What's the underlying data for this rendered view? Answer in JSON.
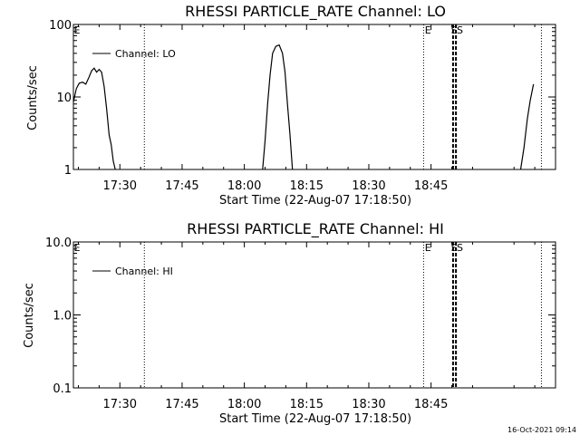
{
  "footer": {
    "timestamp": "16-Oct-2021 09:14"
  },
  "chart_data": [
    {
      "type": "line",
      "title": "RHESSI PARTICLE_RATE Channel: LO",
      "xlabel": "Start Time (22-Aug-07 17:18:50)",
      "ylabel": "Counts/sec",
      "y_scale": "log",
      "ylim": [
        1,
        100
      ],
      "yticks": [
        1,
        10,
        100
      ],
      "ytick_labels": [
        "1",
        "10",
        "100"
      ],
      "xlim_minutes": [
        1038.8,
        1155.0
      ],
      "xticks_minutes": [
        1050,
        1065,
        1080,
        1095,
        1110,
        1125
      ],
      "xtick_labels": [
        "17:30",
        "17:45",
        "18:00",
        "18:15",
        "18:30",
        "18:45"
      ],
      "legend": {
        "label": "Channel: LO",
        "placement": "top-left"
      },
      "series": [
        {
          "name": "Channel: LO",
          "points_min_value": [
            [
              1038.8,
              8.5
            ],
            [
              1039.5,
              13
            ],
            [
              1040.2,
              15.5
            ],
            [
              1041,
              16
            ],
            [
              1041.8,
              15
            ],
            [
              1042.6,
              19
            ],
            [
              1043.2,
              23
            ],
            [
              1043.8,
              25
            ],
            [
              1044.4,
              22
            ],
            [
              1045,
              24
            ],
            [
              1045.6,
              22
            ],
            [
              1046.2,
              14
            ],
            [
              1046.8,
              7
            ],
            [
              1047.4,
              3
            ],
            [
              1047.9,
              2.2
            ],
            [
              1048.4,
              1.3
            ],
            [
              1048.9,
              1.0
            ]
          ]
        },
        {
          "name": "",
          "points_min_value": [
            [
              1084.4,
              1.0
            ],
            [
              1085.0,
              2.5
            ],
            [
              1085.6,
              8
            ],
            [
              1086.2,
              20
            ],
            [
              1086.8,
              40
            ],
            [
              1087.6,
              50
            ],
            [
              1088.4,
              52
            ],
            [
              1089.2,
              40
            ],
            [
              1089.8,
              22
            ],
            [
              1090.4,
              8
            ],
            [
              1091.0,
              3
            ],
            [
              1091.6,
              1.0
            ]
          ]
        },
        {
          "name": "",
          "points_min_value": [
            [
              1146.6,
              1.0
            ],
            [
              1147.4,
              2
            ],
            [
              1148.2,
              5
            ],
            [
              1148.9,
              9
            ],
            [
              1149.7,
              15
            ]
          ]
        }
      ]
    },
    {
      "type": "line",
      "title": "RHESSI PARTICLE_RATE Channel: HI",
      "xlabel": "Start Time (22-Aug-07 17:18:50)",
      "ylabel": "Counts/sec",
      "y_scale": "log",
      "ylim": [
        0.1,
        10
      ],
      "yticks": [
        0.1,
        1,
        10
      ],
      "ytick_labels": [
        "0.1",
        "1.0",
        "10.0"
      ],
      "xlim_minutes": [
        1038.8,
        1155.0
      ],
      "xticks_minutes": [
        1050,
        1065,
        1080,
        1095,
        1110,
        1125
      ],
      "xtick_labels": [
        "17:30",
        "17:45",
        "18:00",
        "18:15",
        "18:30",
        "18:45"
      ],
      "legend": {
        "label": "Channel: HI",
        "placement": "top-left"
      },
      "series": [
        {
          "name": "Channel: HI",
          "points_min_value": []
        }
      ]
    }
  ],
  "markers": {
    "dotted_minutes": [
      1055.9,
      1123.2,
      1151.6
    ],
    "hatched_minutes": [
      1130.3,
      1131.0
    ],
    "labels": [
      {
        "text": "E",
        "minute": 1038.9
      },
      {
        "text": "E",
        "minute": 1123.5
      },
      {
        "text": "S",
        "minute": 1129.8
      },
      {
        "text": "S",
        "minute": 1131.2
      }
    ]
  }
}
